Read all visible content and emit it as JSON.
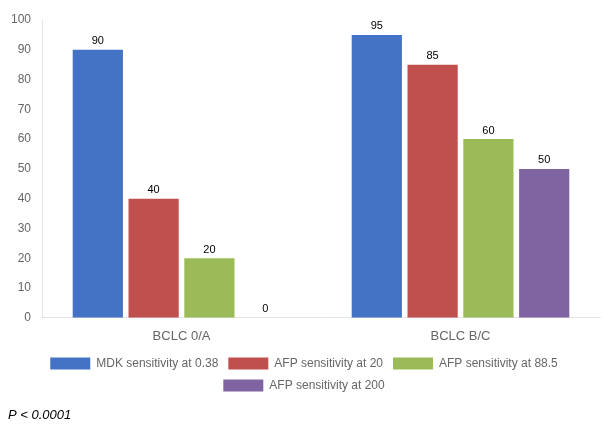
{
  "chart_data": {
    "type": "bar",
    "categories": [
      "BCLC 0/A",
      "BCLC B/C"
    ],
    "series": [
      {
        "name": "MDK sensitivity at 0.38",
        "color": "#4472C4",
        "values": [
          90,
          95
        ]
      },
      {
        "name": "AFP sensitivity at 20",
        "color": "#C0504D",
        "values": [
          40,
          85
        ]
      },
      {
        "name": "AFP sensitivity at 88.5",
        "color": "#9BBB59",
        "values": [
          20,
          60
        ]
      },
      {
        "name": "AFP sensitivity at 200",
        "color": "#8064A2",
        "values": [
          0,
          50
        ]
      }
    ],
    "ylim": [
      0,
      100
    ],
    "yticks": [
      0,
      10,
      20,
      30,
      40,
      50,
      60,
      70,
      80,
      90,
      100
    ],
    "annotations": [
      "P < 0.0001"
    ],
    "data_labels": true,
    "legend": "bottom",
    "grid": false
  }
}
